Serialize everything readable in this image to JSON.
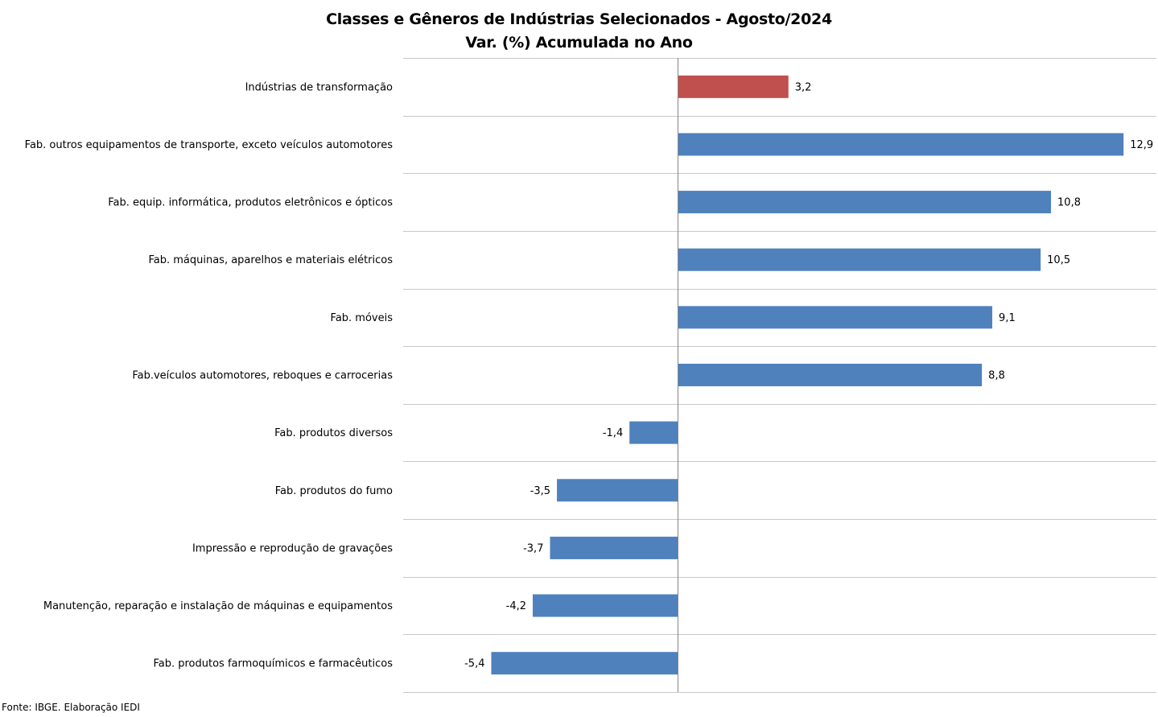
{
  "chart_data": {
    "type": "bar",
    "orientation": "horizontal",
    "title": "Classes e Gêneros de Indústrias Selecionados - Agosto/2024",
    "subtitle": "Var. (%) Acumulada no Ano",
    "categories": [
      "Indústrias de transformação",
      "Fab. outros equipamentos de transporte, exceto veículos automotores",
      "Fab. equip. informática, produtos eletrônicos e ópticos",
      "Fab. máquinas, aparelhos e materiais elétricos",
      "Fab. móveis",
      "Fab.veículos automotores, reboques e carrocerias",
      "Fab. produtos diversos",
      "Fab. produtos do fumo",
      "Impressão e reprodução de gravações",
      "Manutenção, reparação e instalação de máquinas e equipamentos",
      "Fab. produtos farmoquímicos e farmacêuticos"
    ],
    "values": [
      3.2,
      12.9,
      10.8,
      10.5,
      9.1,
      8.8,
      -1.4,
      -3.5,
      -3.7,
      -4.2,
      -5.4
    ],
    "value_labels": [
      "3,2",
      "12,9",
      "10,8",
      "10,5",
      "9,1",
      "8,8",
      "-1,4",
      "-3,5",
      "-3,7",
      "-4,2",
      "-5,4"
    ],
    "xlim": [
      -6.5,
      14
    ],
    "grid": true,
    "colors": {
      "highlight": "#C0504D",
      "default": "#4F81BD"
    },
    "highlight_index": 0
  },
  "source": "Fonte: IBGE. Elaboração IEDI"
}
